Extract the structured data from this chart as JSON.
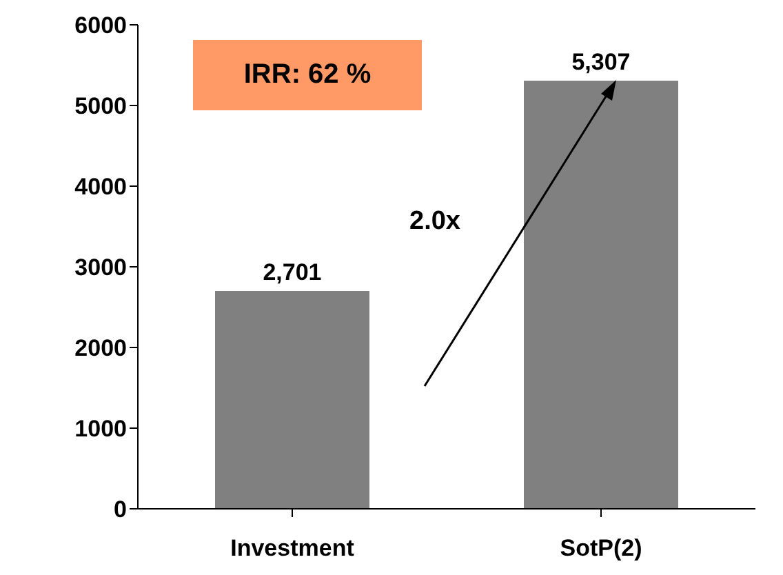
{
  "chart_data": {
    "type": "bar",
    "categories": [
      "Investment",
      "SotP(2)"
    ],
    "values": [
      2701,
      5307
    ],
    "color": "#808080",
    "ylim": [
      0,
      6000
    ],
    "yticks": [
      0,
      1000,
      2000,
      3000,
      4000,
      5000,
      6000
    ],
    "data_labels": true,
    "value_labels": [
      "2,701",
      "5,307"
    ],
    "annotations": [
      "IRR: 62 %",
      "2.0x"
    ]
  }
}
